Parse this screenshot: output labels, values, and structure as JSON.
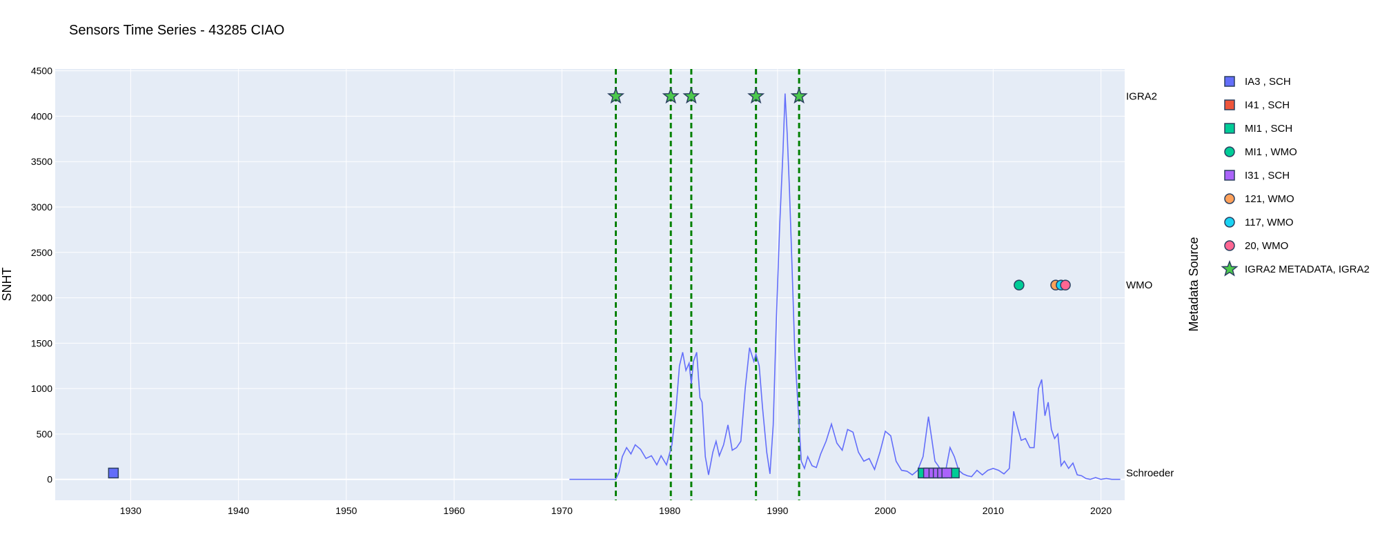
{
  "chart_data": {
    "type": "line",
    "title": "Sensors Time Series - 43285 CIAO",
    "ylabel": "SNHT",
    "xlabel": "",
    "y2label": "Metadata Source",
    "xlim": [
      1923,
      2022.2
    ],
    "ylim": [
      -230,
      4520
    ],
    "xticks": [
      1930,
      1940,
      1950,
      1960,
      1970,
      1980,
      1990,
      2000,
      2010,
      2020
    ],
    "yticks": [
      0,
      500,
      1000,
      1500,
      2000,
      2500,
      3000,
      3500,
      4000,
      4500
    ],
    "grid": true,
    "legend_position": "right",
    "colors": {
      "plot_bg": "#e5ecf6",
      "grid": "#ffffff",
      "line": "#636efa",
      "vline": "#008000",
      "marker_edge": "#2a3f5f"
    },
    "category_levels": [
      {
        "label": "IGRA2",
        "y": 4220
      },
      {
        "label": "WMO",
        "y": 2140
      },
      {
        "label": "Schroeder",
        "y": 70
      }
    ],
    "vlines": [
      1975.0,
      1980.1,
      1982.0,
      1988.0,
      1992.0
    ],
    "snht_series": {
      "name": "SNHT",
      "x": [
        1970.7,
        1975.0,
        1975.3,
        1975.6,
        1976.0,
        1976.4,
        1976.8,
        1977.3,
        1977.8,
        1978.3,
        1978.8,
        1979.2,
        1979.7,
        1980.2,
        1980.6,
        1980.9,
        1981.2,
        1981.5,
        1981.8,
        1982.0,
        1982.2,
        1982.5,
        1982.8,
        1983.0,
        1983.3,
        1983.6,
        1984.0,
        1984.3,
        1984.6,
        1985.0,
        1985.4,
        1985.8,
        1986.2,
        1986.6,
        1987.0,
        1987.4,
        1987.8,
        1988.0,
        1988.3,
        1988.6,
        1989.0,
        1989.3,
        1989.6,
        1989.9,
        1990.2,
        1990.5,
        1990.7,
        1990.9,
        1991.1,
        1991.3,
        1991.6,
        1991.9,
        1992.2,
        1992.5,
        1992.8,
        1993.2,
        1993.6,
        1994.0,
        1994.5,
        1995.0,
        1995.5,
        1996.0,
        1996.5,
        1997.0,
        1997.5,
        1998.0,
        1998.5,
        1999.0,
        1999.5,
        2000.0,
        2000.5,
        2001.0,
        2001.5,
        2002.0,
        2002.5,
        2003.0,
        2003.5,
        2004.0,
        2004.3,
        2004.6,
        2004.9,
        2005.2,
        2005.6,
        2006.0,
        2006.4,
        2006.8,
        2007.2,
        2007.6,
        2008.0,
        2008.5,
        2009.0,
        2009.5,
        2010.0,
        2010.5,
        2011.0,
        2011.5,
        2011.9,
        2012.2,
        2012.6,
        2013.0,
        2013.4,
        2013.8,
        2014.2,
        2014.5,
        2014.8,
        2015.1,
        2015.4,
        2015.7,
        2016.0,
        2016.3,
        2016.6,
        2017.0,
        2017.4,
        2017.8,
        2018.2,
        2018.6,
        2019.0,
        2019.5,
        2020.0,
        2020.5,
        2021.0,
        2021.8
      ],
      "y": [
        0,
        0,
        80,
        250,
        350,
        280,
        380,
        330,
        230,
        260,
        160,
        260,
        160,
        380,
        800,
        1250,
        1400,
        1200,
        1280,
        1050,
        1300,
        1400,
        900,
        850,
        250,
        50,
        300,
        420,
        260,
        380,
        600,
        320,
        350,
        420,
        1000,
        1450,
        1300,
        1380,
        1250,
        800,
        300,
        60,
        600,
        1800,
        2800,
        3600,
        4250,
        3800,
        3200,
        2500,
        1400,
        800,
        200,
        120,
        250,
        150,
        130,
        280,
        420,
        610,
        400,
        320,
        550,
        520,
        300,
        200,
        230,
        110,
        300,
        530,
        480,
        200,
        100,
        90,
        50,
        100,
        250,
        690,
        450,
        200,
        150,
        90,
        100,
        350,
        250,
        100,
        60,
        40,
        30,
        100,
        50,
        100,
        120,
        100,
        60,
        120,
        750,
        600,
        430,
        450,
        350,
        350,
        1000,
        1100,
        700,
        850,
        550,
        450,
        500,
        150,
        200,
        120,
        180,
        50,
        40,
        10,
        0,
        20,
        0,
        10,
        0,
        0
      ]
    },
    "legend": [
      {
        "label": "IA3 , SCH",
        "symbol": "square",
        "color": "#636efa"
      },
      {
        "label": "I41 , SCH",
        "symbol": "square",
        "color": "#ef553b"
      },
      {
        "label": "MI1 , SCH",
        "symbol": "square",
        "color": "#00cc96"
      },
      {
        "label": "MI1 , WMO",
        "symbol": "circle",
        "color": "#00cc96"
      },
      {
        "label": "I31 , SCH",
        "symbol": "square",
        "color": "#ab63fa"
      },
      {
        "label": "121, WMO",
        "symbol": "circle",
        "color": "#ffa15a"
      },
      {
        "label": "117, WMO",
        "symbol": "circle",
        "color": "#19d3f3"
      },
      {
        "label": "20, WMO",
        "symbol": "circle",
        "color": "#ff6692"
      },
      {
        "label": "IGRA2 METADATA, IGRA2",
        "symbol": "star",
        "color": "#4cc94c"
      }
    ],
    "marker_series": [
      {
        "name": "IA3 , SCH",
        "symbol": "square",
        "color": "#636efa",
        "x": [
          1928.4
        ],
        "y": [
          70
        ]
      },
      {
        "name": "MI1 , SCH",
        "symbol": "square",
        "color": "#00cc96",
        "x": [
          2003.5,
          2006.4
        ],
        "y": [
          70,
          70
        ]
      },
      {
        "name": "I31 , SCH",
        "symbol": "square",
        "color": "#ab63fa",
        "x": [
          2004.0,
          2004.5,
          2004.9,
          2005.3,
          2005.7
        ],
        "y": [
          70,
          70,
          70,
          70,
          70
        ]
      },
      {
        "name": "MI1 , WMO",
        "symbol": "circle",
        "color": "#00cc96",
        "x": [
          2012.4
        ],
        "y": [
          2140
        ]
      },
      {
        "name": "121, WMO",
        "symbol": "circle",
        "color": "#ffa15a",
        "x": [
          2015.8
        ],
        "y": [
          2140
        ]
      },
      {
        "name": "117, WMO",
        "symbol": "circle",
        "color": "#19d3f3",
        "x": [
          2016.3
        ],
        "y": [
          2140
        ]
      },
      {
        "name": "20, WMO",
        "symbol": "circle",
        "color": "#ff6692",
        "x": [
          2016.7
        ],
        "y": [
          2140
        ]
      },
      {
        "name": "IGRA2 METADATA, IGRA2",
        "symbol": "star",
        "color": "#4cc94c",
        "x": [
          1975.0,
          1980.1,
          1982.0,
          1988.0,
          1992.0
        ],
        "y": [
          4220,
          4220,
          4220,
          4220,
          4220
        ]
      }
    ]
  }
}
